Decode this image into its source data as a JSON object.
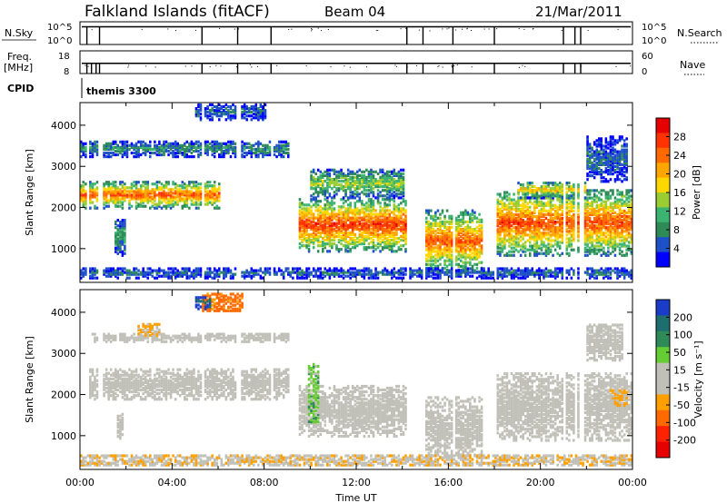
{
  "header": {
    "station": "Falkland Islands (fitACF)",
    "beam": "Beam 04",
    "date": "21/Mar/2011"
  },
  "colors": {
    "power_scale": [
      "#0000ff",
      "#1e50c8",
      "#2e8b57",
      "#3cb371",
      "#9acd32",
      "#ffd700",
      "#ffa500",
      "#ff6a00",
      "#ff3300",
      "#e60000"
    ],
    "velocity_scale": [
      "#1a3cc8",
      "#1e6e6e",
      "#2e8b57",
      "#66cc33",
      "#c0c0b8",
      "#c0c0b8",
      "#ffa000",
      "#ff6a00",
      "#ff2200",
      "#e60000"
    ],
    "ground_scatter": "#c0c0b8"
  },
  "chart_data": [
    {
      "type": "line",
      "panel": "noise",
      "left_label": "N.Sky",
      "left_ticks": [
        "10^5",
        "10^0"
      ],
      "right_label": "N.Search",
      "right_ticks": [
        "10^5",
        "10^0"
      ],
      "dropout_hours": [
        0.3,
        0.85,
        5.3,
        6.85,
        8.3,
        14.2,
        14.9,
        16.2,
        18.0,
        21.0,
        21.5,
        21.75
      ]
    },
    {
      "type": "line",
      "panel": "frequency",
      "left_label": "Freq.",
      "left_unit": "[MHz]",
      "left_ticks": [
        "18",
        "8"
      ],
      "right_label": "Nave",
      "right_ticks": [
        "60",
        "0"
      ],
      "dropout_hours": [
        0.3,
        0.5,
        0.7,
        0.85,
        5.3,
        6.85,
        8.3,
        14.2,
        14.9,
        16.2,
        18.0,
        21.0,
        21.5,
        21.75
      ]
    },
    {
      "type": "table",
      "panel": "cpid",
      "label": "CPID",
      "program": "themis 3300"
    },
    {
      "type": "heatmap",
      "panel": "power",
      "ylabel": "Slant Range [km]",
      "yticks": [
        1000,
        2000,
        3000,
        4000
      ],
      "ylim": [
        180,
        4550
      ],
      "xlim": [
        0,
        24
      ],
      "colorbar_label": "Power [dB]",
      "colorbar_ticks": [
        "4",
        "8",
        "12",
        "16",
        "20",
        "24",
        "28"
      ],
      "colorbar_range": [
        0,
        30
      ],
      "scatter_bands": [
        {
          "t0": 0.0,
          "t1": 6.0,
          "r0": 1950,
          "r1": 2600,
          "peak": 24
        },
        {
          "t0": 1.5,
          "t1": 2.0,
          "r0": 800,
          "r1": 1700,
          "peak": 10
        },
        {
          "t0": 0.0,
          "t1": 9.0,
          "r0": 3200,
          "r1": 3600,
          "peak": 8
        },
        {
          "t0": 5.0,
          "t1": 8.0,
          "r0": 4100,
          "r1": 4500,
          "peak": 6
        },
        {
          "t0": 9.5,
          "t1": 14.2,
          "r0": 900,
          "r1": 2200,
          "peak": 26
        },
        {
          "t0": 10.0,
          "t1": 14.0,
          "r0": 2200,
          "r1": 2900,
          "peak": 14
        },
        {
          "t0": 14.9,
          "t1": 17.5,
          "r0": 400,
          "r1": 1900,
          "peak": 24
        },
        {
          "t0": 18.0,
          "t1": 24.0,
          "r0": 800,
          "r1": 2400,
          "peak": 25
        },
        {
          "t0": 19.0,
          "t1": 22.0,
          "r0": 2200,
          "r1": 2600,
          "peak": 18
        },
        {
          "t0": 22.0,
          "t1": 23.8,
          "r0": 2600,
          "r1": 3700,
          "peak": 6
        },
        {
          "t0": 0.0,
          "t1": 24.0,
          "r0": 250,
          "r1": 500,
          "peak": 6
        }
      ]
    },
    {
      "type": "heatmap",
      "panel": "velocity",
      "ylabel": "Slant Range [km]",
      "yticks": [
        1000,
        2000,
        3000,
        4000
      ],
      "ylim": [
        180,
        4550
      ],
      "xlim": [
        0,
        24
      ],
      "colorbar_label": "Velocity [m s⁻¹]",
      "colorbar_ticks": [
        "200",
        "100",
        "50",
        "15",
        "-15",
        "-50",
        "-100",
        "-200"
      ],
      "colorbar_range": [
        -250,
        250
      ],
      "xlabel": "Time UT",
      "xticks": [
        "00:00",
        "04:00",
        "08:00",
        "12:00",
        "16:00",
        "20:00",
        "00:00"
      ],
      "ground_scatter_bands": [
        {
          "t0": 0.3,
          "t1": 9.0,
          "r0": 1850,
          "r1": 2600
        },
        {
          "t0": 1.6,
          "t1": 1.9,
          "r0": 900,
          "r1": 1500
        },
        {
          "t0": 0.5,
          "t1": 9.0,
          "r0": 3250,
          "r1": 3450
        },
        {
          "t0": 9.5,
          "t1": 14.2,
          "r0": 950,
          "r1": 2200
        },
        {
          "t0": 14.9,
          "t1": 17.5,
          "r0": 450,
          "r1": 1900
        },
        {
          "t0": 18.0,
          "t1": 24.0,
          "r0": 850,
          "r1": 2500
        },
        {
          "t0": 22.0,
          "t1": 23.6,
          "r0": 2800,
          "r1": 3700
        }
      ],
      "ionospheric_features": [
        {
          "t0": 2.5,
          "t1": 3.5,
          "r0": 3400,
          "r1": 3700,
          "velocity": -60
        },
        {
          "t0": 5.3,
          "t1": 7.0,
          "r0": 4000,
          "r1": 4450,
          "velocity": -120
        },
        {
          "t0": 5.0,
          "t1": 5.6,
          "r0": 4050,
          "r1": 4350,
          "velocity": 200
        },
        {
          "t0": 9.9,
          "t1": 10.3,
          "r0": 1300,
          "r1": 2700,
          "velocity": 35
        },
        {
          "t0": 23.0,
          "t1": 23.8,
          "r0": 1700,
          "r1": 2100,
          "velocity": -60
        },
        {
          "t0": 0.0,
          "t1": 24.0,
          "r0": 250,
          "r1": 500,
          "velocity": -40
        }
      ]
    }
  ]
}
